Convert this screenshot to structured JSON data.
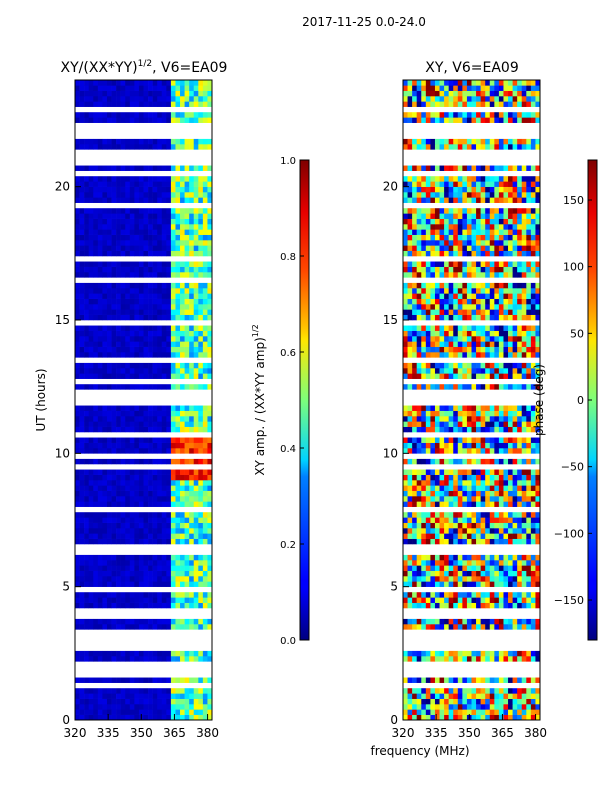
{
  "figure": {
    "suptitle": "2017-11-25 0.0-24.0"
  },
  "chart_data": [
    {
      "type": "heatmap",
      "title_main": "XY/(XX*YY)",
      "title_exp": "1/2",
      "title_tail": ", V6=EA09",
      "ylabel": "UT (hours)",
      "xlim": [
        320,
        382
      ],
      "ylim": [
        0,
        24
      ],
      "xticks": [
        "320",
        "335",
        "350",
        "365",
        "380"
      ],
      "xtick_values": [
        320,
        335,
        350,
        365,
        380
      ],
      "yticks": [
        "0",
        "5",
        "10",
        "15",
        "20"
      ],
      "ytick_values": [
        0,
        5,
        10,
        15,
        20
      ],
      "colorbar": {
        "label_main": "XY amp. / (XX*YY amp)",
        "label_exp": "1/2",
        "ticks": [
          "0.0",
          "0.2",
          "0.4",
          "0.6",
          "0.8",
          "1.0"
        ],
        "tick_values": [
          0.0,
          0.2,
          0.4,
          0.6,
          0.8,
          1.0
        ],
        "range": [
          0.0,
          1.0
        ]
      },
      "note": "Amplitude mostly ~0.05 (dark blue) below ~363 MHz; band 363–378 MHz shows 0.3–0.7 with peak ~0.9 around 9–10.5 UT. Flagged (white) rows occur throughout."
    },
    {
      "type": "heatmap",
      "title_main": "XY, V6=EA09",
      "xlabel": "frequency (MHz)",
      "xlim": [
        320,
        382
      ],
      "ylim": [
        0,
        24
      ],
      "xticks": [
        "320",
        "335",
        "350",
        "365",
        "380"
      ],
      "xtick_values": [
        320,
        335,
        350,
        365,
        380
      ],
      "yticks": [
        "0",
        "5",
        "10",
        "15",
        "20"
      ],
      "ytick_values": [
        0,
        5,
        10,
        15,
        20
      ],
      "colorbar": {
        "label_main": "phase (deg)",
        "ticks": [
          "−150",
          "−100",
          "−50",
          "0",
          "50",
          "100",
          "150"
        ],
        "tick_values": [
          -150,
          -100,
          -50,
          0,
          50,
          100,
          150
        ],
        "range": [
          -180,
          180
        ]
      },
      "note": "Phase wraps across full ±180° range; noisy with structure at high frequencies."
    }
  ],
  "colors": {
    "flag": "#ffffff",
    "low": "#00007f",
    "high": "#7f0000"
  }
}
